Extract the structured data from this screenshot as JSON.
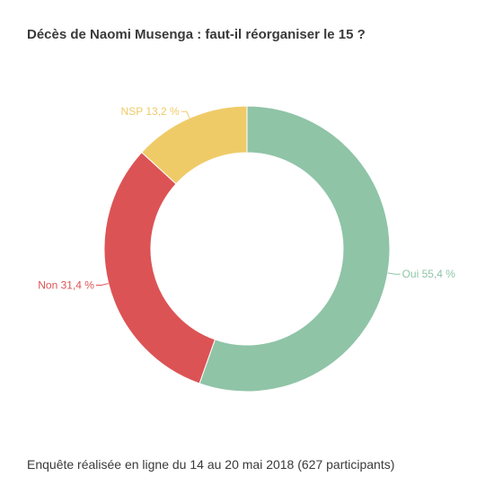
{
  "chart_data": {
    "type": "pie",
    "title": "Décès de Naomi Musenga : faut-il réorganiser le 15 ?",
    "footer": "Enquête réalisée en ligne du 14 au 20 mai 2018  (627 participants)",
    "donut": true,
    "slices": [
      {
        "label": "Oui 55,4 %",
        "value": 55.4,
        "color": "#8fc4a7"
      },
      {
        "label": "Non 31,4 %",
        "value": 31.4,
        "color": "#dc5355"
      },
      {
        "label": "NSP 13,2 %",
        "value": 13.2,
        "color": "#efcb68"
      }
    ]
  }
}
